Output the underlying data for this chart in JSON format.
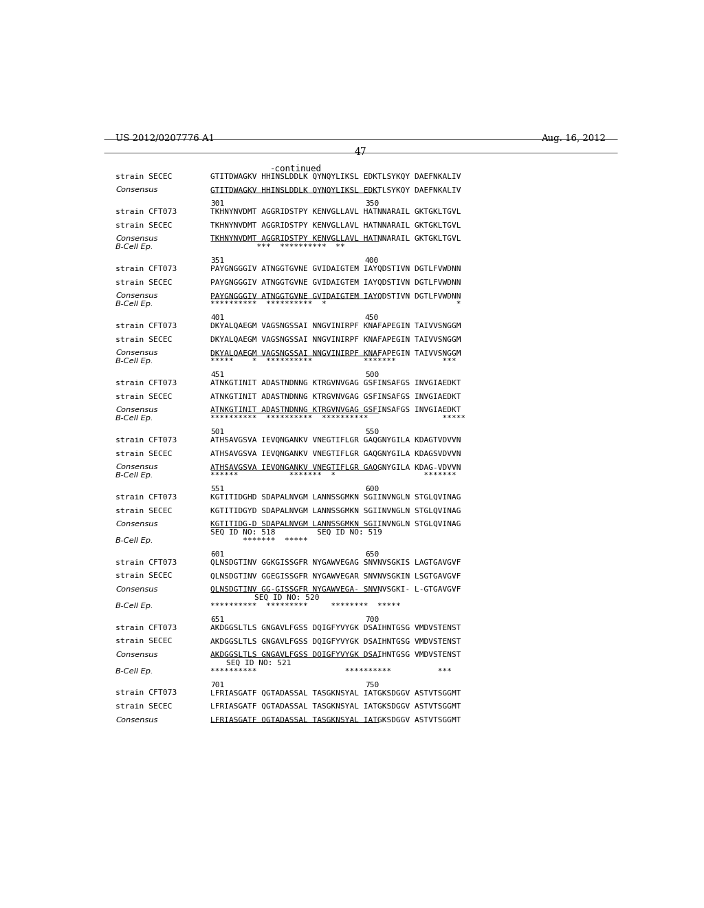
{
  "title_left": "US 2012/0207776 A1",
  "title_right": "Aug. 16, 2012",
  "page_number": "47",
  "continued": "-continued",
  "background_color": "#ffffff",
  "text_color": "#000000",
  "lines": [
    {
      "type": "continued",
      "label": "",
      "text": "-continued"
    },
    {
      "type": "strain",
      "label": "strain SECEC",
      "text": "GTITDWAGKV HHINSLDDLK QYNQYLIKSL EDKTLSYKQY DAEFNKALIV"
    },
    {
      "type": "blank"
    },
    {
      "type": "consensus",
      "label": "Consensus",
      "text": "GTITDWAGKV HHINSLDDLK QYNQYLIKSL EDKTLSYKQY DAEFNKALIV"
    },
    {
      "type": "blank"
    },
    {
      "type": "numbering",
      "label": "",
      "left_num": "301",
      "right_num": "350"
    },
    {
      "type": "strain",
      "label": "strain CFT073",
      "text": "TKHNYNVDMT AGGRIDSTPY KENVGLLAVL HATNNARAIL GKTGKLTGVL"
    },
    {
      "type": "blank"
    },
    {
      "type": "strain",
      "label": "strain SECEC",
      "text": "TKHNYNVDMT AGGRIDSTPY KENVGLLAVL HATNNARAIL GKTGKLTGVL"
    },
    {
      "type": "blank"
    },
    {
      "type": "consensus",
      "label": "Consensus",
      "text": "TKHNYNVDMT AGGRIDSTPY KENVGLLAVL HATNNARAIL GKTGKLTGVL"
    },
    {
      "type": "bcell",
      "label": "B-Cell Ep.",
      "text": "          ***  **********  **"
    },
    {
      "type": "blank"
    },
    {
      "type": "numbering",
      "label": "",
      "left_num": "351",
      "right_num": "400"
    },
    {
      "type": "strain",
      "label": "strain CFT073",
      "text": "PAYGNGGGIV ATNGGTGVNE GVIDAIGTEM IAYQDSTIVN DGTLFVWDNN"
    },
    {
      "type": "blank"
    },
    {
      "type": "strain",
      "label": "strain SECEC",
      "text": "PAYGNGGGIV ATNGGTGVNE GVIDAIGTEM IAYQDSTIVN DGTLFVWDNN"
    },
    {
      "type": "blank"
    },
    {
      "type": "consensus",
      "label": "Consensus",
      "text": "PAYGNGGGIV ATNGGTGVNE GVIDAIGTEM IAYQDSTIVN DGTLFVWDNN"
    },
    {
      "type": "bcell",
      "label": "B-Cell Ep.",
      "text": "**********  **********  *                            *"
    },
    {
      "type": "blank"
    },
    {
      "type": "numbering",
      "label": "",
      "left_num": "401",
      "right_num": "450"
    },
    {
      "type": "strain",
      "label": "strain CFT073",
      "text": "DKYALQAEGM VAGSNGSSAI NNGVINIRPF KNAFAPEGIN TAIVVSNGGM"
    },
    {
      "type": "blank"
    },
    {
      "type": "strain",
      "label": "strain SECEC",
      "text": "DKYALQAEGM VAGSNGSSAI NNGVINIRPF KNAFAPEGIN TAIVVSNGGM"
    },
    {
      "type": "blank"
    },
    {
      "type": "consensus",
      "label": "Consensus",
      "text": "DKYALQAEGM VAGSNGSSAI NNGVINIRPF KNAFAPEGIN TAIVVSNGGM"
    },
    {
      "type": "bcell",
      "label": "B-Cell Ep.",
      "text": "*****    *  **********           *******          ***"
    },
    {
      "type": "blank"
    },
    {
      "type": "numbering",
      "label": "",
      "left_num": "451",
      "right_num": "500"
    },
    {
      "type": "strain",
      "label": "strain CFT073",
      "text": "ATNKGTINIT ADASTNDNNG KTRGVNVGAG GSFINSAFGS INVGIAEDKT"
    },
    {
      "type": "blank"
    },
    {
      "type": "strain",
      "label": "strain SECEC",
      "text": "ATNKGTINIT ADASTNDNNG KTRGVNVGAG GSFINSAFGS INVGIAEDKT"
    },
    {
      "type": "blank"
    },
    {
      "type": "consensus",
      "label": "Consensus",
      "text": "ATNKGTINIT ADASTNDNNG KTRGVNVGAG GSFINSAFGS INVGIAEDKT"
    },
    {
      "type": "bcell",
      "label": "B-Cell Ep.",
      "text": "**********  **********  **********                *****"
    },
    {
      "type": "blank"
    },
    {
      "type": "numbering",
      "label": "",
      "left_num": "501",
      "right_num": "550"
    },
    {
      "type": "strain",
      "label": "strain CFT073",
      "text": "ATHSAVGSVA IEVQNGANKV VNEGTIFLGR GAQGNYGILA KDAGTVDVVN"
    },
    {
      "type": "blank"
    },
    {
      "type": "strain",
      "label": "strain SECEC",
      "text": "ATHSAVGSVA IEVQNGANKV VNEGTIFLGR GAQGNYGILA KDAGSVDVVN"
    },
    {
      "type": "blank"
    },
    {
      "type": "consensus",
      "label": "Consensus",
      "text": "ATHSAVGSVA IEVQNGANKV VNEGTIFLGR GAQGNYGILA KDAG-VDVVN"
    },
    {
      "type": "bcell",
      "label": "B-Cell Ep.",
      "text": "******           *******  *                   *******"
    },
    {
      "type": "blank"
    },
    {
      "type": "numbering",
      "label": "",
      "left_num": "551",
      "right_num": "600"
    },
    {
      "type": "strain",
      "label": "strain CFT073",
      "text": "KGTITIDGHD SDAPALNVGM LANNSSGMKN SGIINVNGLN STGLQVINAG"
    },
    {
      "type": "blank"
    },
    {
      "type": "strain",
      "label": "strain SECEC",
      "text": "KGTITIDGYD SDAPALNVGM LANNSSGMKN SGIINVNGLN STGLQVINAG"
    },
    {
      "type": "blank"
    },
    {
      "type": "consensus",
      "label": "Consensus",
      "text": "KGTITIDG-D SDAPALNVGM LANNSSGMKN SGIINVNGLN STGLQVINAG"
    },
    {
      "type": "seqid_inline",
      "label": "",
      "text": "SEQ ID NO: 518         SEQ ID NO: 519"
    },
    {
      "type": "bcell",
      "label": "B-Cell Ep.",
      "text": "       *******  *****"
    },
    {
      "type": "blank"
    },
    {
      "type": "numbering",
      "label": "",
      "left_num": "601",
      "right_num": "650"
    },
    {
      "type": "strain",
      "label": "strain CFT073",
      "text": "QLNSDGTINV GGKGISSGFR NYGAWVEGAG SNVNVSGKIS LAGTGAVGVF"
    },
    {
      "type": "blank"
    },
    {
      "type": "strain",
      "label": "strain SECEC",
      "text": "QLNSDGTINV GGEGISSGFR NYGAWVEGAR SNVNVSGKIN LSGTGAVGVF"
    },
    {
      "type": "blank"
    },
    {
      "type": "consensus",
      "label": "Consensus",
      "text": "QLNSDGTINV GG-GISSGFR NYGAWVEGA- SNVNVSGKI- L-GTGAVGVF"
    },
    {
      "type": "seqid_center",
      "label": "",
      "text": "SEQ ID NO: 520"
    },
    {
      "type": "bcell",
      "label": "B-Cell Ep.",
      "text": "**********  *********     ********  *****"
    },
    {
      "type": "blank"
    },
    {
      "type": "numbering",
      "label": "",
      "left_num": "651",
      "right_num": "700"
    },
    {
      "type": "strain",
      "label": "strain CFT073",
      "text": "AKDGGSLTLS GNGAVLFGSS DQIGFYVYGK DSAIHNTGSG VMDVSTENST"
    },
    {
      "type": "blank"
    },
    {
      "type": "strain",
      "label": "strain SECEC",
      "text": "AKDGGSLTLS GNGAVLFGSS DQIGFYVYGK DSAIHNTGSG VMDVSTENST"
    },
    {
      "type": "blank"
    },
    {
      "type": "consensus",
      "label": "Consensus",
      "text": "AKDGGSLTLS GNGAVLFGSS DQIGFYVYGK DSAIHNTGSG VMDVSTENST"
    },
    {
      "type": "seqid_center2",
      "label": "",
      "text": "SEQ ID NO: 521"
    },
    {
      "type": "bcell",
      "label": "B-Cell Ep.",
      "text": "**********                   **********          ***"
    },
    {
      "type": "blank"
    },
    {
      "type": "numbering",
      "label": "",
      "left_num": "701",
      "right_num": "750"
    },
    {
      "type": "strain",
      "label": "strain CFT073",
      "text": "LFRIASGATF QGTADASSAL TASGKNSYAL IATGKSDGGV ASTVTSGGMT"
    },
    {
      "type": "blank"
    },
    {
      "type": "strain",
      "label": "strain SECEC",
      "text": "LFRIASGATF QGTADASSAL TASGKNSYAL IATGKSDGGV ASTVTSGGMT"
    },
    {
      "type": "blank"
    },
    {
      "type": "consensus",
      "label": "Consensus",
      "text": "LFRIASGATF QGTADASSAL TASGKNSYAL IATGKSDGGV ASTVTSGGMT"
    }
  ]
}
